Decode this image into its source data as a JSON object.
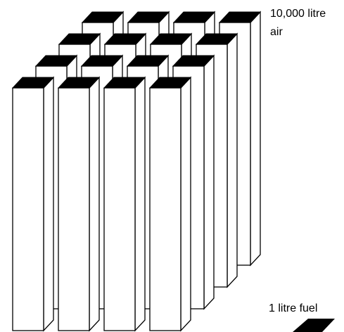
{
  "air_label_lines": [
    "10,000 litre",
    "air"
  ],
  "fuel_label": "1 litre fuel"
}
